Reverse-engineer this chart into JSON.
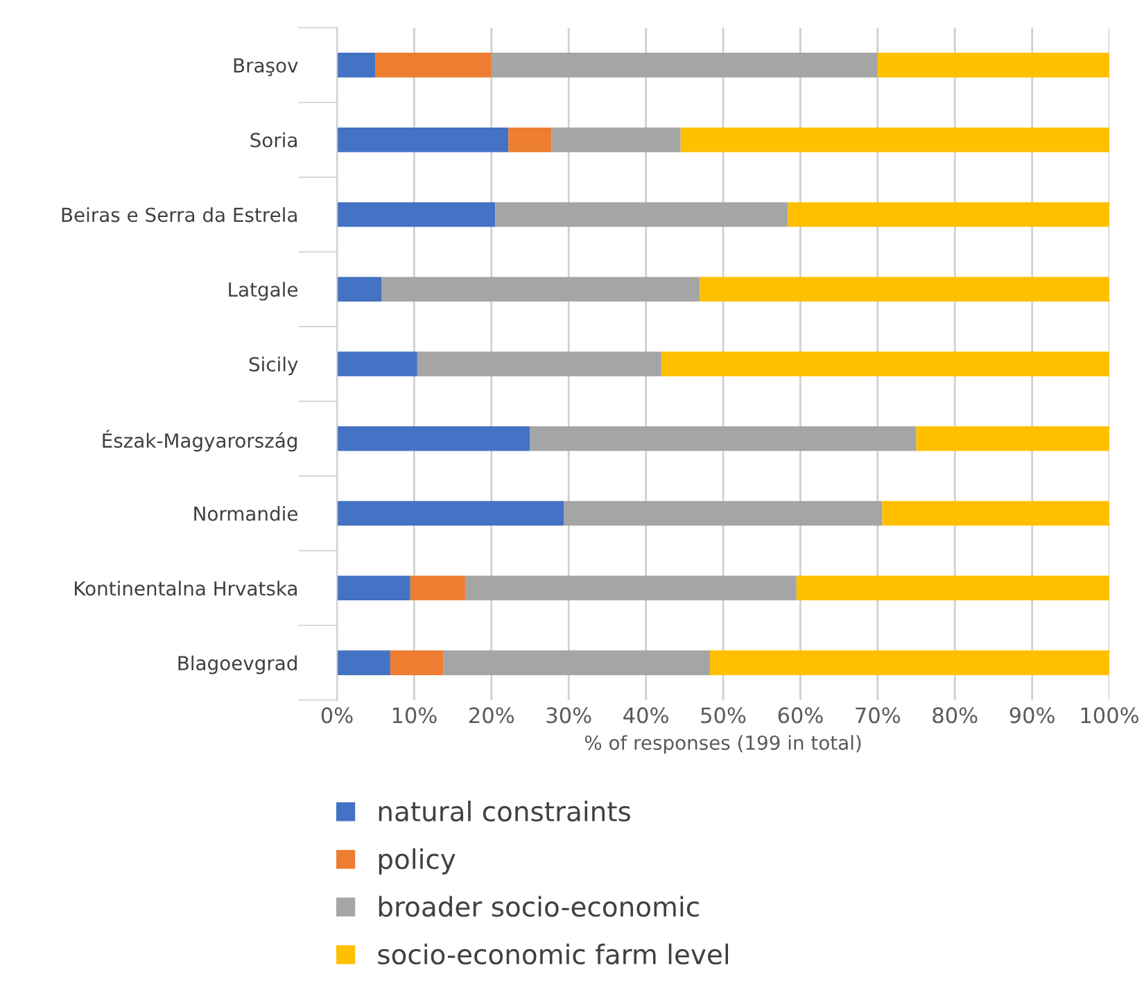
{
  "chart_data": {
    "type": "bar",
    "orientation": "horizontal",
    "stacked": true,
    "categories": [
      "Braşov",
      "Soria",
      "Beiras e Serra da Estrela",
      "Latgale",
      "Sicily",
      "Észak-Magyarország",
      "Normandie",
      "Kontinentalna Hrvatska",
      "Blagoevgrad"
    ],
    "xlabel": "% of responses (199 in total)",
    "xlim": [
      0,
      100
    ],
    "xticks": [
      {
        "value": 0,
        "label": "0%"
      },
      {
        "value": 10,
        "label": "10%"
      },
      {
        "value": 20,
        "label": "20%"
      },
      {
        "value": 30,
        "label": "30%"
      },
      {
        "value": 40,
        "label": "40%"
      },
      {
        "value": 50,
        "label": "50%"
      },
      {
        "value": 60,
        "label": "60%"
      },
      {
        "value": 70,
        "label": "70%"
      },
      {
        "value": 80,
        "label": "80%"
      },
      {
        "value": 90,
        "label": "90%"
      },
      {
        "value": 100,
        "label": "100%"
      }
    ],
    "grid": "x",
    "legend": "bottom",
    "series": [
      {
        "name": "natural constraints",
        "color": "#4472c4",
        "values": [
          5,
          22.2,
          20.5,
          5.8,
          10.4,
          25,
          29.4,
          9.5,
          6.9
        ]
      },
      {
        "name": "policy",
        "color": "#ed7d31",
        "values": [
          15,
          5.6,
          0,
          0,
          0,
          0,
          0,
          7.1,
          6.9
        ]
      },
      {
        "name": "broader socio-economic",
        "color": "#a5a5a5",
        "values": [
          50,
          16.7,
          37.9,
          41.2,
          31.6,
          50,
          41.2,
          42.9,
          34.5
        ]
      },
      {
        "name": "socio-economic farm level",
        "color": "#ffc000",
        "values": [
          30,
          55.5,
          41.6,
          53,
          58,
          25,
          29.4,
          40.5,
          51.7
        ]
      }
    ]
  }
}
